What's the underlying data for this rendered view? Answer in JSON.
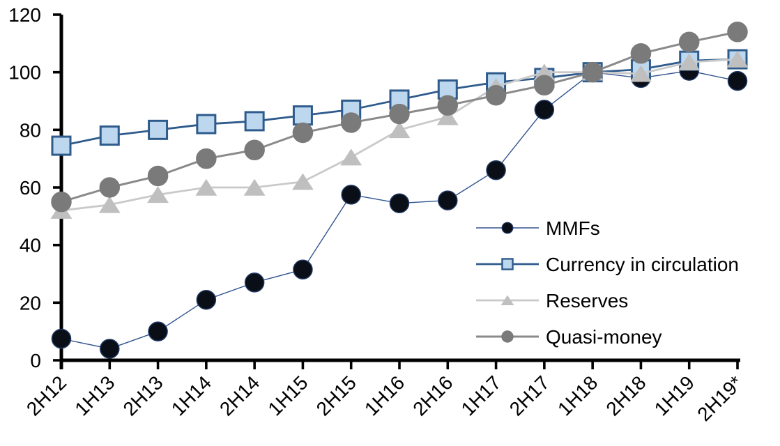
{
  "chart_data": {
    "type": "line",
    "title": "",
    "xlabel": "",
    "ylabel": "",
    "grid": false,
    "legend_position": "inside-right",
    "background_color": "#ffffff",
    "axis_color": "#000000",
    "categories": [
      "2H12",
      "1H13",
      "2H13",
      "1H14",
      "2H14",
      "1H15",
      "2H15",
      "1H16",
      "2H16",
      "1H17",
      "2H17",
      "1H18",
      "2H18",
      "1H19",
      "2H19*"
    ],
    "y_axis": {
      "min": 0,
      "max": 120,
      "step": 20,
      "tick_labels": [
        "0",
        "20",
        "40",
        "60",
        "80",
        "100",
        "120"
      ]
    },
    "series": [
      {
        "name": "MMFs",
        "marker": "circle",
        "values": [
          7.5,
          4,
          10,
          21,
          27,
          31.5,
          57.5,
          54.5,
          55.5,
          66,
          87,
          100,
          98,
          100.5,
          97
        ],
        "line_color": "#31538f",
        "line_width": 1.4,
        "marker_fill": "#0a0e17",
        "marker_stroke": "#1f3864",
        "marker_size": 27
      },
      {
        "name": "Currency in circulation",
        "marker": "square",
        "values": [
          74.5,
          78,
          80,
          82,
          83,
          85,
          87,
          90.5,
          94,
          96.5,
          98,
          100,
          101,
          104,
          104.5
        ],
        "line_color": "#2e5b8c",
        "line_width": 2.8,
        "marker_fill": "#bdd7ee",
        "marker_stroke": "#2e5b8c",
        "marker_size": 26
      },
      {
        "name": "Reserves",
        "marker": "triangle",
        "values": [
          52,
          54,
          57.5,
          60,
          60,
          62,
          70.5,
          80,
          84.5,
          95,
          100,
          100,
          99.5,
          103.5,
          104.5
        ],
        "line_color": "#c9c9c9",
        "line_width": 2.8,
        "marker_fill": "#bfbfbf",
        "marker_stroke": "#bfbfbf",
        "marker_size": 29
      },
      {
        "name": "Quasi-money",
        "marker": "circle",
        "values": [
          55,
          60,
          64,
          70,
          73,
          79,
          82.5,
          85.5,
          88.5,
          92,
          95.5,
          100,
          106.5,
          110.5,
          114
        ],
        "line_color": "#8a8a8a",
        "line_width": 3,
        "marker_fill": "#7a7a7a",
        "marker_stroke": "#7a7a7a",
        "marker_size": 28
      }
    ]
  }
}
